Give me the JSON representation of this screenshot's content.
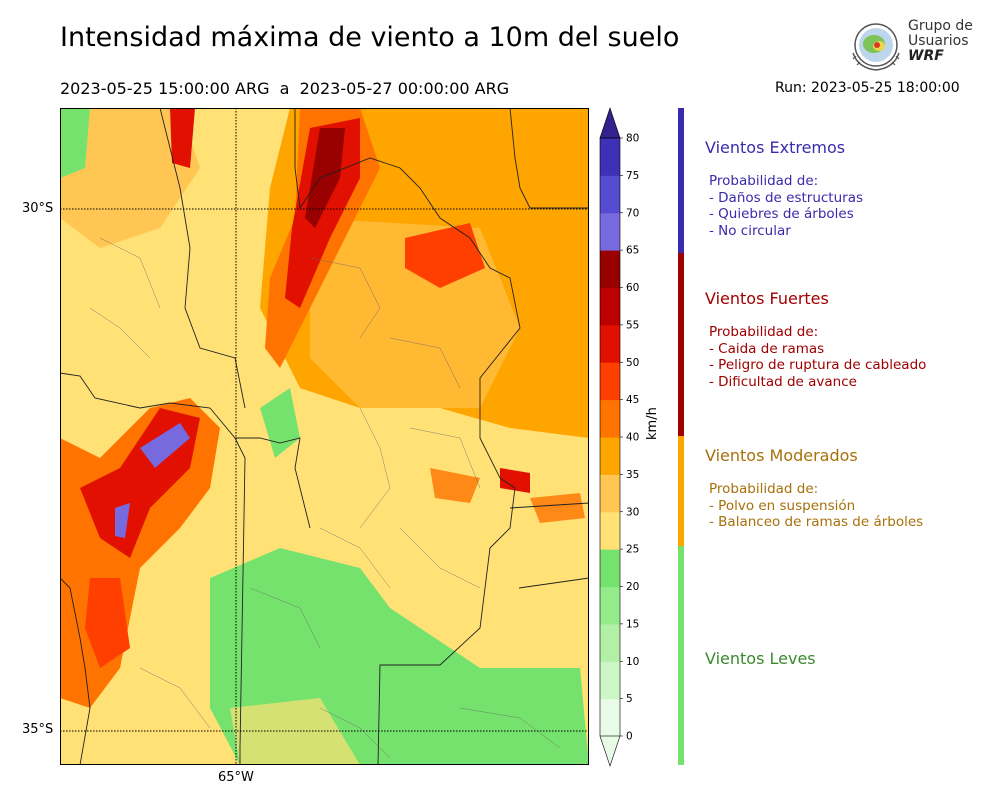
{
  "title": "Intensidad máxima de viento a 10m del suelo",
  "period": "2023-05-25 15:00:00 ARG  a  2023-05-27 00:00:00 ARG",
  "run": "Run: 2023-05-25 18:00:00",
  "logo": {
    "line1": "Grupo de",
    "line2": "Usuarios",
    "line3": "WRF"
  },
  "map": {
    "lat_labels": [
      "30°S",
      "35°S"
    ],
    "lon_labels": [
      "65°W"
    ],
    "gridlines": "dotted"
  },
  "colorbar": {
    "unit": "km/h",
    "ticks": [
      "0",
      "5",
      "10",
      "15",
      "20",
      "25",
      "30",
      "35",
      "40",
      "45",
      "50",
      "55",
      "60",
      "65",
      "70",
      "75",
      "80"
    ],
    "colors": [
      "#e8fbe6",
      "#cdf6c6",
      "#b2f0a8",
      "#93eb8a",
      "#76e26e",
      "#ffe176",
      "#ffc653",
      "#ffa500",
      "#ff7300",
      "#ff3f00",
      "#e21000",
      "#bd0000",
      "#990000",
      "#776ade",
      "#554cd2",
      "#3f30b8",
      "#32228e"
    ]
  },
  "categories": [
    {
      "title": "Vientos Extremos",
      "color": "#3a2aad",
      "lines": [
        "Probabilidad de:",
        "- Daños de estructuras",
        "- Quiebres de árboles",
        "- No circular"
      ]
    },
    {
      "title": "Vientos Fuertes",
      "color": "#a00000",
      "lines": [
        "Probabilidad de:",
        "- Caida de ramas",
        "- Peligro de ruptura de cableado",
        "- Dificultad de avance"
      ]
    },
    {
      "title": "Vientos Moderados",
      "color": "#a8700a",
      "lines": [
        "Probabilidad de:",
        "- Polvo en suspensión",
        "- Balanceo de ramas de árboles"
      ]
    },
    {
      "title": "Vientos Leves",
      "color": "#3b8a2e",
      "lines": []
    }
  ]
}
